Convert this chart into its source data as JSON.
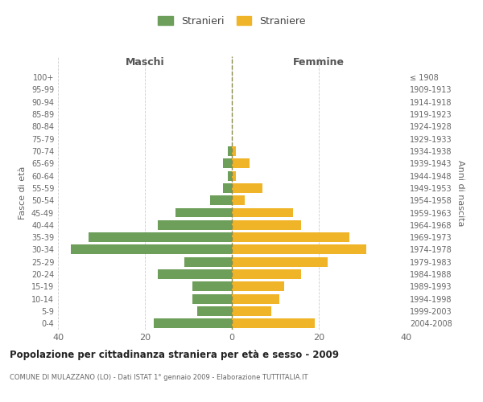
{
  "age_groups": [
    "0-4",
    "5-9",
    "10-14",
    "15-19",
    "20-24",
    "25-29",
    "30-34",
    "35-39",
    "40-44",
    "45-49",
    "50-54",
    "55-59",
    "60-64",
    "65-69",
    "70-74",
    "75-79",
    "80-84",
    "85-89",
    "90-94",
    "95-99",
    "100+"
  ],
  "birth_years": [
    "2004-2008",
    "1999-2003",
    "1994-1998",
    "1989-1993",
    "1984-1988",
    "1979-1983",
    "1974-1978",
    "1969-1973",
    "1964-1968",
    "1959-1963",
    "1954-1958",
    "1949-1953",
    "1944-1948",
    "1939-1943",
    "1934-1938",
    "1929-1933",
    "1924-1928",
    "1919-1923",
    "1914-1918",
    "1909-1913",
    "≤ 1908"
  ],
  "males": [
    18,
    8,
    9,
    9,
    17,
    11,
    37,
    33,
    17,
    13,
    5,
    2,
    1,
    2,
    1,
    0,
    0,
    0,
    0,
    0,
    0
  ],
  "females": [
    19,
    9,
    11,
    12,
    16,
    22,
    31,
    27,
    16,
    14,
    3,
    7,
    1,
    4,
    1,
    0,
    0,
    0,
    0,
    0,
    0
  ],
  "male_color": "#6d9e5a",
  "female_color": "#f0b429",
  "background_color": "#ffffff",
  "grid_color": "#cccccc",
  "title": "Popolazione per cittadinanza straniera per età e sesso - 2009",
  "subtitle": "COMUNE DI MULAZZANO (LO) - Dati ISTAT 1° gennaio 2009 - Elaborazione TUTTITALIA.IT",
  "xlabel_left": "Maschi",
  "xlabel_right": "Femmine",
  "ylabel_left": "Fasce di età",
  "ylabel_right": "Anni di nascita",
  "xlim": 40,
  "legend_labels": [
    "Stranieri",
    "Straniere"
  ],
  "dashed_line_color": "#8a8a4a"
}
